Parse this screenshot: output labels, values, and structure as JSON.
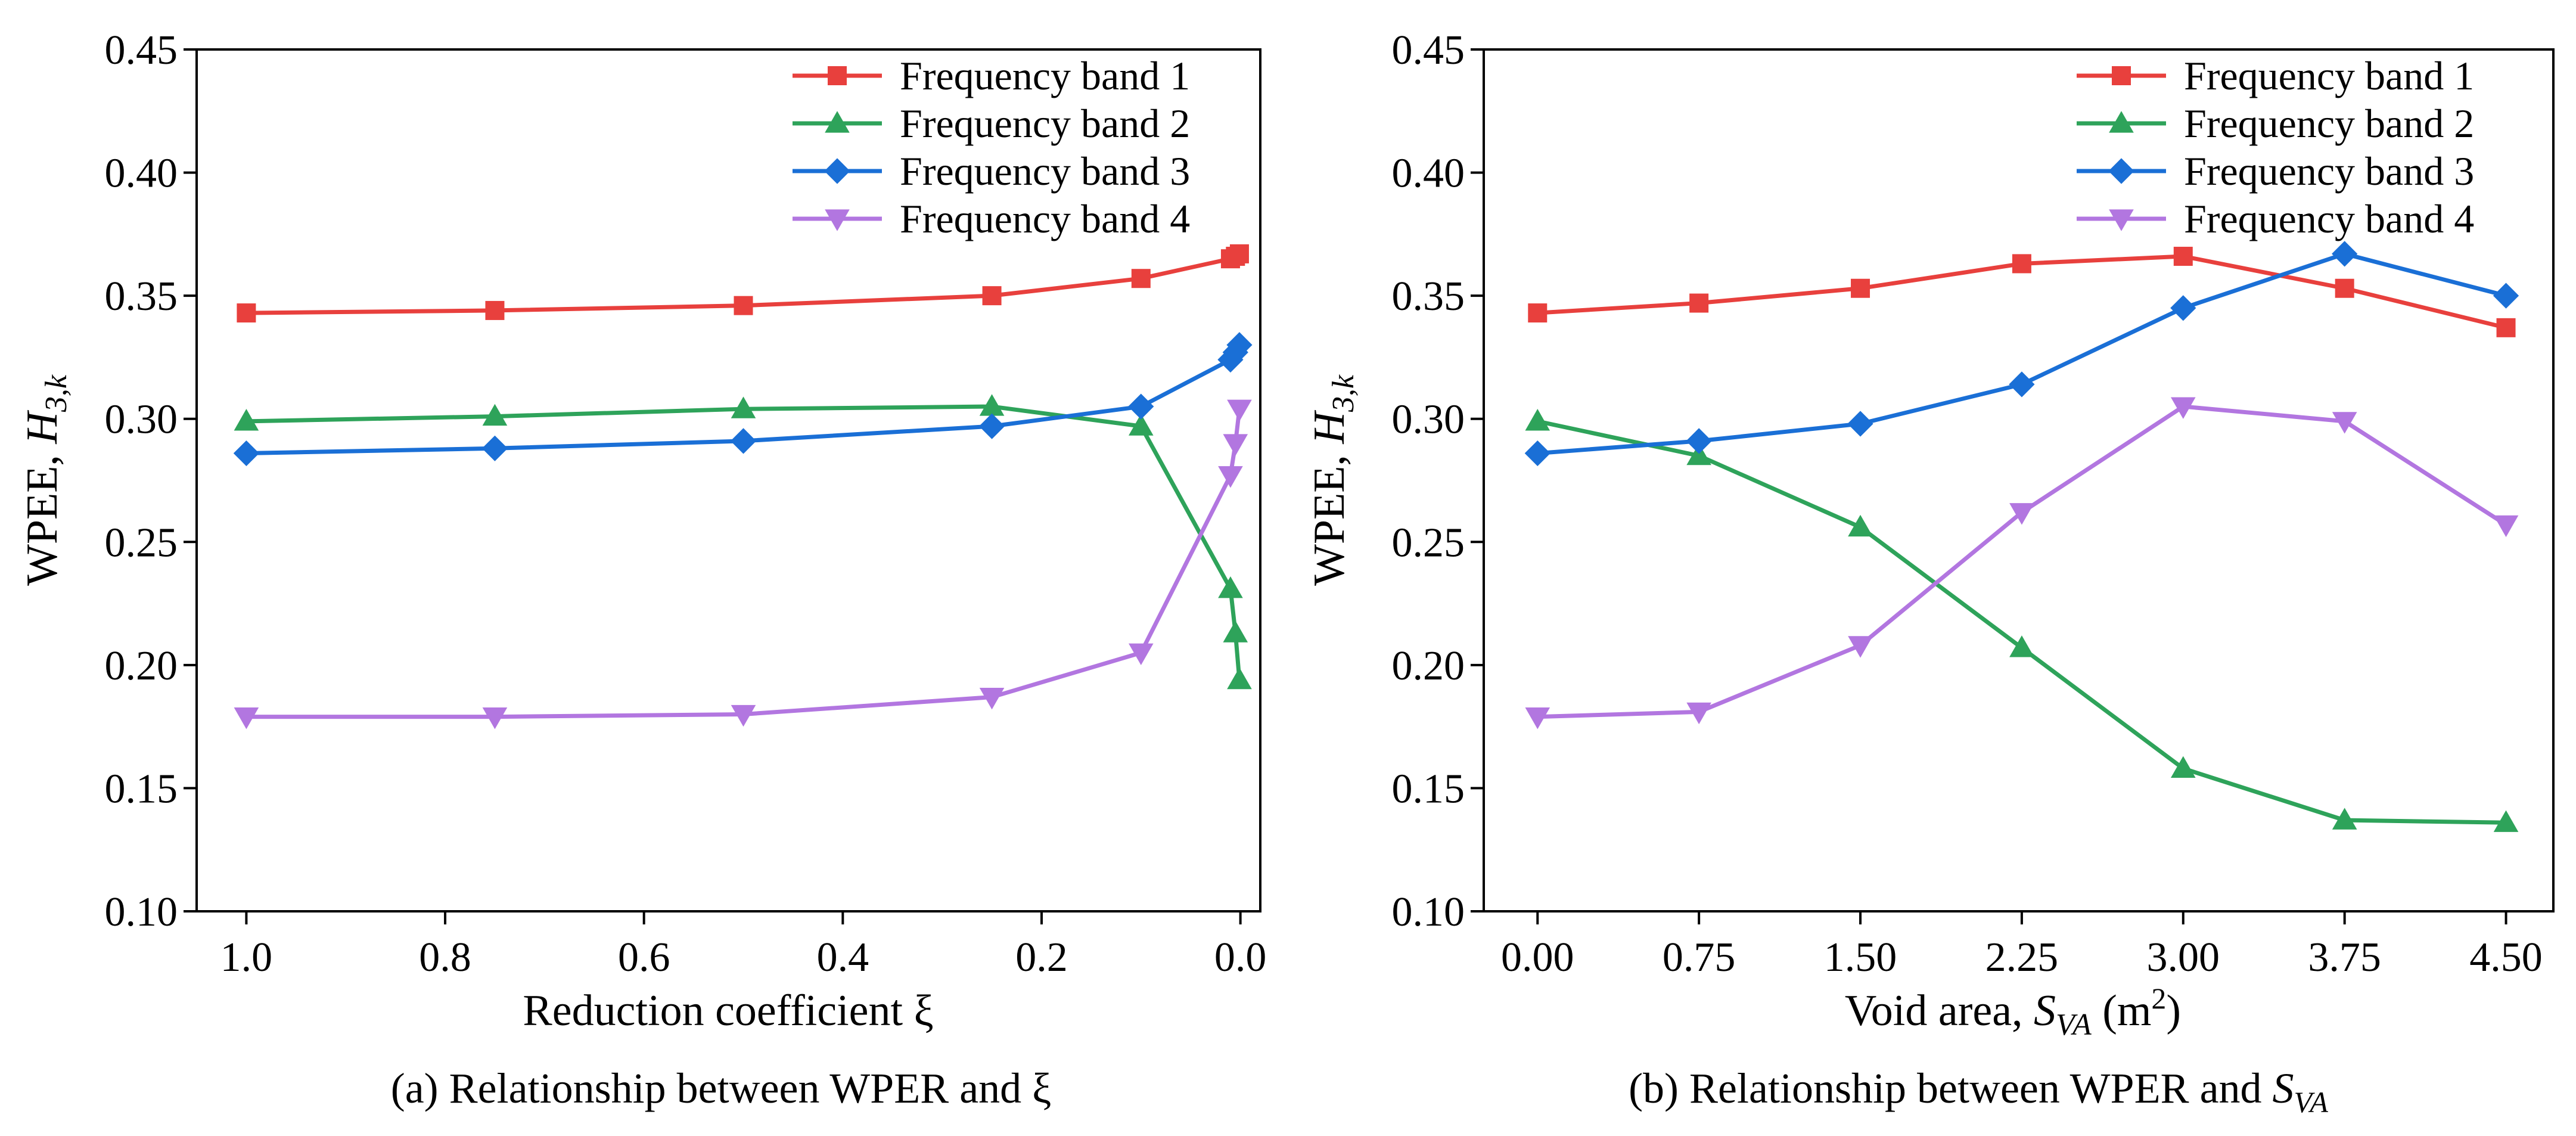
{
  "chart_data": [
    {
      "type": "line",
      "caption": "(a) Relationship between WPER and ξ",
      "xlabel": "Reduction coefficient ξ",
      "ylabel_text": "WPEE, ",
      "ylabel_var": "H",
      "ylabel_sub": "3,k",
      "xlim": [
        1.05,
        -0.02
      ],
      "ylim": [
        0.1,
        0.45
      ],
      "xticks": [
        1.0,
        0.8,
        0.6,
        0.4,
        0.2,
        0.0
      ],
      "xtick_labels": [
        "1.0",
        "0.8",
        "0.6",
        "0.4",
        "0.2",
        "0.0"
      ],
      "yticks": [
        0.1,
        0.15,
        0.2,
        0.25,
        0.3,
        0.35,
        0.4,
        0.45
      ],
      "ytick_labels": [
        "0.10",
        "0.15",
        "0.20",
        "0.25",
        "0.30",
        "0.35",
        "0.40",
        "0.45"
      ],
      "legend_position": "top-right",
      "x": [
        1.0,
        0.75,
        0.5,
        0.25,
        0.1,
        0.01,
        0.005,
        0.001
      ],
      "series": [
        {
          "name": "Frequency band 1",
          "color": "#e8403d",
          "marker": "square",
          "values": [
            0.343,
            0.344,
            0.346,
            0.35,
            0.357,
            0.365,
            0.366,
            0.367
          ]
        },
        {
          "name": "Frequency band 2",
          "color": "#2ea35a",
          "marker": "triangle-up",
          "values": [
            0.299,
            0.301,
            0.304,
            0.305,
            0.297,
            0.231,
            0.213,
            0.194
          ]
        },
        {
          "name": "Frequency band 3",
          "color": "#1a6fd6",
          "marker": "diamond",
          "values": [
            0.286,
            0.288,
            0.291,
            0.297,
            0.305,
            0.324,
            0.327,
            0.33
          ]
        },
        {
          "name": "Frequency band 4",
          "color": "#b276e0",
          "marker": "triangle-down",
          "values": [
            0.179,
            0.179,
            0.18,
            0.187,
            0.205,
            0.277,
            0.29,
            0.304
          ]
        }
      ]
    },
    {
      "type": "line",
      "caption_text": "(b) Relationship between WPER and ",
      "caption_var": "S",
      "caption_sub": "VA",
      "xlabel_text": "Void area, ",
      "xlabel_var": "S",
      "xlabel_sub": "VA",
      "xlabel_unit": " (m",
      "xlabel_sup": "2",
      "xlabel_close": ")",
      "ylabel_text": "WPEE, ",
      "ylabel_var": "H",
      "ylabel_sub": "3,k",
      "xlim": [
        -0.25,
        4.72
      ],
      "ylim": [
        0.1,
        0.45
      ],
      "xticks": [
        0.0,
        0.75,
        1.5,
        2.25,
        3.0,
        3.75,
        4.5
      ],
      "xtick_labels": [
        "0.00",
        "0.75",
        "1.50",
        "2.25",
        "3.00",
        "3.75",
        "4.50"
      ],
      "yticks": [
        0.1,
        0.15,
        0.2,
        0.25,
        0.3,
        0.35,
        0.4,
        0.45
      ],
      "ytick_labels": [
        "0.10",
        "0.15",
        "0.20",
        "0.25",
        "0.30",
        "0.35",
        "0.40",
        "0.45"
      ],
      "legend_position": "top-right",
      "x": [
        0.0,
        0.75,
        1.5,
        2.25,
        3.0,
        3.75,
        4.5
      ],
      "series": [
        {
          "name": "Frequency band 1",
          "color": "#e8403d",
          "marker": "square",
          "values": [
            0.343,
            0.347,
            0.353,
            0.363,
            0.366,
            0.353,
            0.337
          ]
        },
        {
          "name": "Frequency band 2",
          "color": "#2ea35a",
          "marker": "triangle-up",
          "values": [
            0.299,
            0.285,
            0.256,
            0.207,
            0.158,
            0.137,
            0.136
          ]
        },
        {
          "name": "Frequency band 3",
          "color": "#1a6fd6",
          "marker": "diamond",
          "values": [
            0.286,
            0.291,
            0.298,
            0.314,
            0.345,
            0.367,
            0.35
          ]
        },
        {
          "name": "Frequency band 4",
          "color": "#b276e0",
          "marker": "triangle-down",
          "values": [
            0.179,
            0.181,
            0.208,
            0.262,
            0.305,
            0.299,
            0.257
          ]
        }
      ]
    }
  ]
}
